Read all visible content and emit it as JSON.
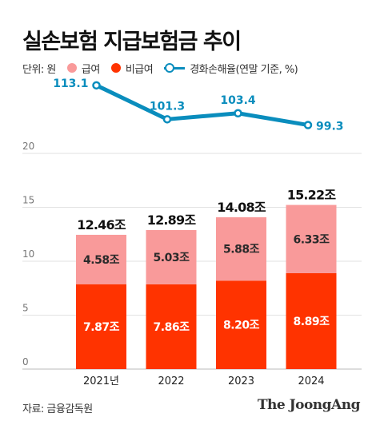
{
  "title": "실손보험 지급보험금 추이",
  "legend": {
    "unit": "단위: 원",
    "items": [
      {
        "label": "급여",
        "color": "#f99a9a"
      },
      {
        "label": "비급여",
        "color": "#ff3300"
      },
      {
        "label": "경화손해율(연말 기준, %)",
        "color": "#0a8dbd"
      }
    ]
  },
  "source": "자료: 금융감독원",
  "brand": "The JoongAng",
  "chart_data": {
    "type": "bar",
    "stacked": true,
    "categories": [
      "2021년",
      "2022",
      "2023",
      "2024"
    ],
    "series": [
      {
        "name": "비급여",
        "values": [
          7.87,
          7.86,
          8.2,
          8.89
        ],
        "labels": [
          "7.87조",
          "7.86조",
          "8.20조",
          "8.89조"
        ],
        "color": "#ff3300"
      },
      {
        "name": "급여",
        "values": [
          4.58,
          5.03,
          5.88,
          6.33
        ],
        "labels": [
          "4.58조",
          "5.03조",
          "5.88조",
          "6.33조"
        ],
        "color": "#f99a9a"
      }
    ],
    "totals": [
      12.46,
      12.89,
      14.08,
      15.22
    ],
    "total_labels": [
      "12.46조",
      "12.89조",
      "14.08조",
      "15.22조"
    ],
    "y_ticks": [
      0,
      5,
      10,
      15,
      20
    ],
    "ylim": [
      0,
      20
    ],
    "grid": true,
    "line": {
      "name": "경화손해율(연말 기준, %)",
      "values": [
        113.1,
        101.3,
        103.4,
        99.3
      ],
      "labels": [
        "113.1",
        "101.3",
        "103.4",
        "99.3"
      ],
      "color": "#0a8dbd",
      "ylim": [
        95,
        115
      ]
    }
  }
}
